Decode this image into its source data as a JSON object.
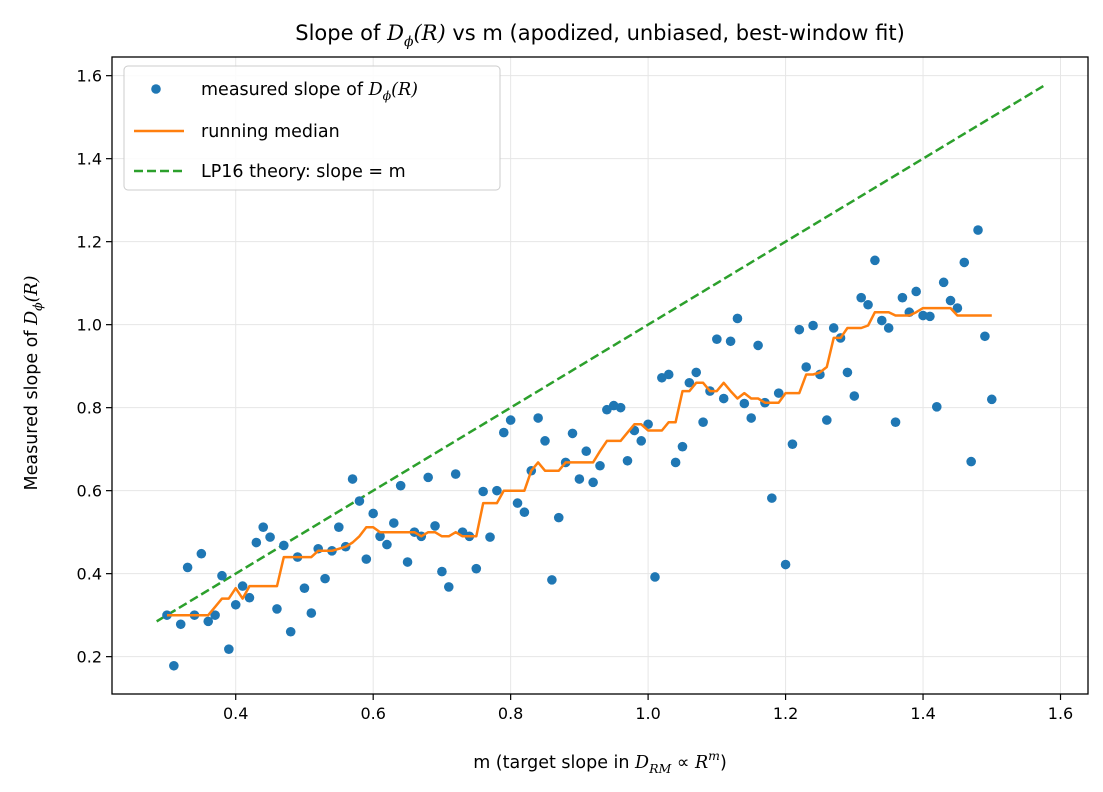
{
  "chart_data": {
    "type": "scatter",
    "title": {
      "pre": "Slope of ",
      "math_main": "D",
      "math_sub": "ϕ",
      "math_arg": "(R)",
      "post": " vs m (apodized, unbiased, best-window fit)"
    },
    "xlabel": {
      "pre": "m  (target slope in ",
      "math_main": "D",
      "math_sub": "RM",
      "rel": " ∝ ",
      "math_base": "R",
      "math_sup": "m",
      "post": ")"
    },
    "ylabel": {
      "pre": "Measured slope of ",
      "math_main": "D",
      "math_sub": "ϕ",
      "math_arg": "(R)"
    },
    "xlim": [
      0.22,
      1.64
    ],
    "ylim": [
      0.11,
      1.645
    ],
    "xticks": [
      0.4,
      0.6,
      0.8,
      1.0,
      1.2,
      1.4,
      1.6
    ],
    "xtick_labels": [
      "0.4",
      "0.6",
      "0.8",
      "1.0",
      "1.2",
      "1.4",
      "1.6"
    ],
    "yticks": [
      0.2,
      0.4,
      0.6,
      0.8,
      1.0,
      1.2,
      1.4,
      1.6
    ],
    "ytick_labels": [
      "0.2",
      "0.4",
      "0.6",
      "0.8",
      "1.0",
      "1.2",
      "1.4",
      "1.6"
    ],
    "grid": true,
    "legend_position": "top-left",
    "legend": [
      {
        "marker": "dot",
        "color": "#1f77b4",
        "pre": "measured slope of ",
        "math_main": "D",
        "math_sub": "ϕ",
        "math_arg": "(R)"
      },
      {
        "marker": "line",
        "color": "#ff7f0e",
        "label": "running median"
      },
      {
        "marker": "dashed",
        "color": "#2ca02c",
        "label": "LP16 theory: slope = m"
      }
    ],
    "series": [
      {
        "name": "measured slope of Dϕ(R)",
        "kind": "scatter",
        "color": "#1f77b4",
        "x": [
          0.3,
          0.31,
          0.32,
          0.33,
          0.34,
          0.35,
          0.36,
          0.37,
          0.38,
          0.39,
          0.4,
          0.41,
          0.42,
          0.43,
          0.44,
          0.45,
          0.46,
          0.47,
          0.48,
          0.49,
          0.5,
          0.51,
          0.52,
          0.53,
          0.54,
          0.55,
          0.56,
          0.57,
          0.58,
          0.59,
          0.6,
          0.61,
          0.62,
          0.63,
          0.64,
          0.65,
          0.66,
          0.67,
          0.68,
          0.69,
          0.7,
          0.71,
          0.72,
          0.73,
          0.74,
          0.75,
          0.76,
          0.77,
          0.78,
          0.79,
          0.8,
          0.81,
          0.82,
          0.83,
          0.84,
          0.85,
          0.86,
          0.87,
          0.88,
          0.89,
          0.9,
          0.91,
          0.92,
          0.93,
          0.94,
          0.95,
          0.96,
          0.97,
          0.98,
          0.99,
          1.0,
          1.01,
          1.02,
          1.03,
          1.04,
          1.05,
          1.06,
          1.07,
          1.08,
          1.09,
          1.1,
          1.11,
          1.12,
          1.13,
          1.14,
          1.15,
          1.16,
          1.17,
          1.18,
          1.19,
          1.2,
          1.21,
          1.22,
          1.23,
          1.24,
          1.25,
          1.26,
          1.27,
          1.28,
          1.29,
          1.3,
          1.31,
          1.32,
          1.33,
          1.34,
          1.35,
          1.36,
          1.37,
          1.38,
          1.39,
          1.4,
          1.41,
          1.42,
          1.43,
          1.44,
          1.45,
          1.46,
          1.47,
          1.48,
          1.49,
          1.5
        ],
        "y": [
          0.3,
          0.178,
          0.278,
          0.415,
          0.3,
          0.448,
          0.285,
          0.3,
          0.395,
          0.218,
          0.325,
          0.37,
          0.342,
          0.475,
          0.512,
          0.488,
          0.315,
          0.468,
          0.26,
          0.44,
          0.365,
          0.305,
          0.46,
          0.388,
          0.455,
          0.512,
          0.465,
          0.628,
          0.575,
          0.435,
          0.545,
          0.49,
          0.47,
          0.522,
          0.612,
          0.428,
          0.5,
          0.49,
          0.632,
          0.515,
          0.405,
          0.368,
          0.64,
          0.5,
          0.49,
          0.412,
          0.598,
          0.488,
          0.6,
          0.74,
          0.77,
          0.57,
          0.548,
          0.648,
          0.775,
          0.72,
          0.385,
          0.535,
          0.668,
          0.738,
          0.628,
          0.695,
          0.62,
          0.66,
          0.795,
          0.805,
          0.8,
          0.672,
          0.745,
          0.72,
          0.76,
          0.392,
          0.872,
          0.88,
          0.668,
          0.706,
          0.86,
          0.885,
          0.765,
          0.84,
          0.965,
          0.822,
          0.96,
          1.015,
          0.81,
          0.775,
          0.95,
          0.812,
          0.582,
          0.835,
          0.422,
          0.712,
          0.988,
          0.898,
          0.998,
          0.88,
          0.77,
          0.992,
          0.968,
          0.885,
          0.828,
          1.065,
          1.048,
          1.155,
          1.01,
          0.992,
          0.765,
          1.065,
          1.03,
          1.08,
          1.022,
          1.02,
          0.802,
          1.102,
          1.058,
          1.04,
          1.15,
          0.67,
          1.228,
          0.972,
          0.82
        ]
      },
      {
        "name": "running median",
        "kind": "line",
        "color": "#ff7f0e",
        "x": [
          0.3,
          0.31,
          0.32,
          0.33,
          0.34,
          0.35,
          0.36,
          0.37,
          0.38,
          0.39,
          0.4,
          0.41,
          0.42,
          0.43,
          0.44,
          0.45,
          0.46,
          0.47,
          0.48,
          0.49,
          0.5,
          0.51,
          0.52,
          0.53,
          0.54,
          0.55,
          0.56,
          0.57,
          0.58,
          0.59,
          0.6,
          0.61,
          0.62,
          0.63,
          0.64,
          0.65,
          0.66,
          0.67,
          0.68,
          0.69,
          0.7,
          0.71,
          0.72,
          0.73,
          0.74,
          0.75,
          0.76,
          0.77,
          0.78,
          0.79,
          0.8,
          0.81,
          0.82,
          0.83,
          0.84,
          0.85,
          0.86,
          0.87,
          0.88,
          0.89,
          0.9,
          0.91,
          0.92,
          0.93,
          0.94,
          0.95,
          0.96,
          0.97,
          0.98,
          0.99,
          1.0,
          1.01,
          1.02,
          1.03,
          1.04,
          1.05,
          1.06,
          1.07,
          1.08,
          1.09,
          1.1,
          1.11,
          1.12,
          1.13,
          1.14,
          1.15,
          1.16,
          1.17,
          1.18,
          1.19,
          1.2,
          1.21,
          1.22,
          1.23,
          1.24,
          1.25,
          1.26,
          1.27,
          1.28,
          1.29,
          1.3,
          1.31,
          1.32,
          1.33,
          1.34,
          1.35,
          1.36,
          1.37,
          1.38,
          1.39,
          1.4,
          1.41,
          1.42,
          1.43,
          1.44,
          1.45,
          1.46,
          1.47,
          1.48,
          1.49,
          1.5
        ],
        "y": [
          0.3,
          0.3,
          0.3,
          0.3,
          0.3,
          0.3,
          0.3,
          0.32,
          0.34,
          0.34,
          0.365,
          0.34,
          0.37,
          0.37,
          0.37,
          0.37,
          0.37,
          0.44,
          0.44,
          0.44,
          0.44,
          0.44,
          0.455,
          0.455,
          0.455,
          0.46,
          0.465,
          0.475,
          0.49,
          0.512,
          0.512,
          0.5,
          0.5,
          0.5,
          0.5,
          0.5,
          0.5,
          0.49,
          0.5,
          0.5,
          0.49,
          0.49,
          0.5,
          0.49,
          0.49,
          0.49,
          0.57,
          0.57,
          0.57,
          0.6,
          0.6,
          0.6,
          0.6,
          0.648,
          0.668,
          0.648,
          0.648,
          0.648,
          0.668,
          0.668,
          0.668,
          0.668,
          0.668,
          0.695,
          0.72,
          0.72,
          0.72,
          0.74,
          0.76,
          0.76,
          0.745,
          0.745,
          0.745,
          0.765,
          0.765,
          0.84,
          0.84,
          0.86,
          0.86,
          0.84,
          0.84,
          0.86,
          0.84,
          0.822,
          0.835,
          0.822,
          0.822,
          0.812,
          0.812,
          0.812,
          0.835,
          0.835,
          0.835,
          0.88,
          0.88,
          0.885,
          0.898,
          0.968,
          0.968,
          0.992,
          0.992,
          0.992,
          0.998,
          1.03,
          1.03,
          1.03,
          1.022,
          1.022,
          1.022,
          1.03,
          1.04,
          1.04,
          1.04,
          1.04,
          1.04,
          1.022,
          1.022,
          1.022,
          1.022,
          1.022,
          1.022
        ]
      },
      {
        "name": "LP16 theory: slope = m",
        "kind": "dashed-line",
        "color": "#2ca02c",
        "x": [
          0.285,
          1.575
        ],
        "y": [
          0.285,
          1.575
        ]
      }
    ]
  }
}
